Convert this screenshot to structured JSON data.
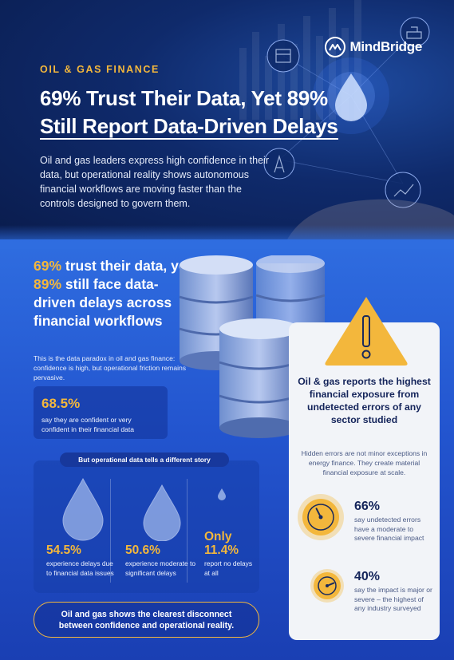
{
  "brand": {
    "name": "MindBridge"
  },
  "hero": {
    "eyebrow": "OIL & GAS FINANCE",
    "title_line1": "69% Trust Their Data, Yet 89%",
    "title_line2": "Still Report Data-Driven Delays",
    "lede": "Oil and gas leaders express high confidence in their data, but operational reality shows autonomous financial workflows are moving faster than the controls designed to govern them."
  },
  "left": {
    "headline_pct1": "69%",
    "headline_mid": " trust their data, yet ",
    "headline_pct2": "89%",
    "headline_end": " still face data-driven delays across financial workflows",
    "paradox": "This is the data paradox in oil and gas finance: confidence is high, but operational friction remains pervasive.",
    "confidence_stat": {
      "value": "68.5%",
      "label": "say they are confident or very confident in their financial data"
    }
  },
  "operations": {
    "pill": "But operational data tells a different story",
    "stats": [
      {
        "value": "54.5%",
        "label": "experience delays due to financial data issues"
      },
      {
        "value": "50.6%",
        "label": "experience moderate to significant delays"
      },
      {
        "prefix": "Only",
        "value": "11.4%",
        "label": "report no delays at all"
      }
    ],
    "disconnect": "Oil and gas shows the clearest disconnect between confidence and operational reality."
  },
  "exposure": {
    "headline": "Oil & gas reports the highest financial exposure from undetected errors of any sector studied",
    "sub": "Hidden errors are not minor exceptions in energy finance. They create material financial exposure at scale.",
    "stats": [
      {
        "value": "66%",
        "label": "say undetected errors have a moderate to severe financial impact",
        "gauge_level": 0.4
      },
      {
        "value": "40%",
        "label": "say the impact is major or severe – the highest of any industry surveyed",
        "gauge_level": 0.75
      }
    ]
  },
  "colors": {
    "accent": "#f3b73c",
    "navy": "#14245a",
    "card": "#f2f4f8"
  }
}
